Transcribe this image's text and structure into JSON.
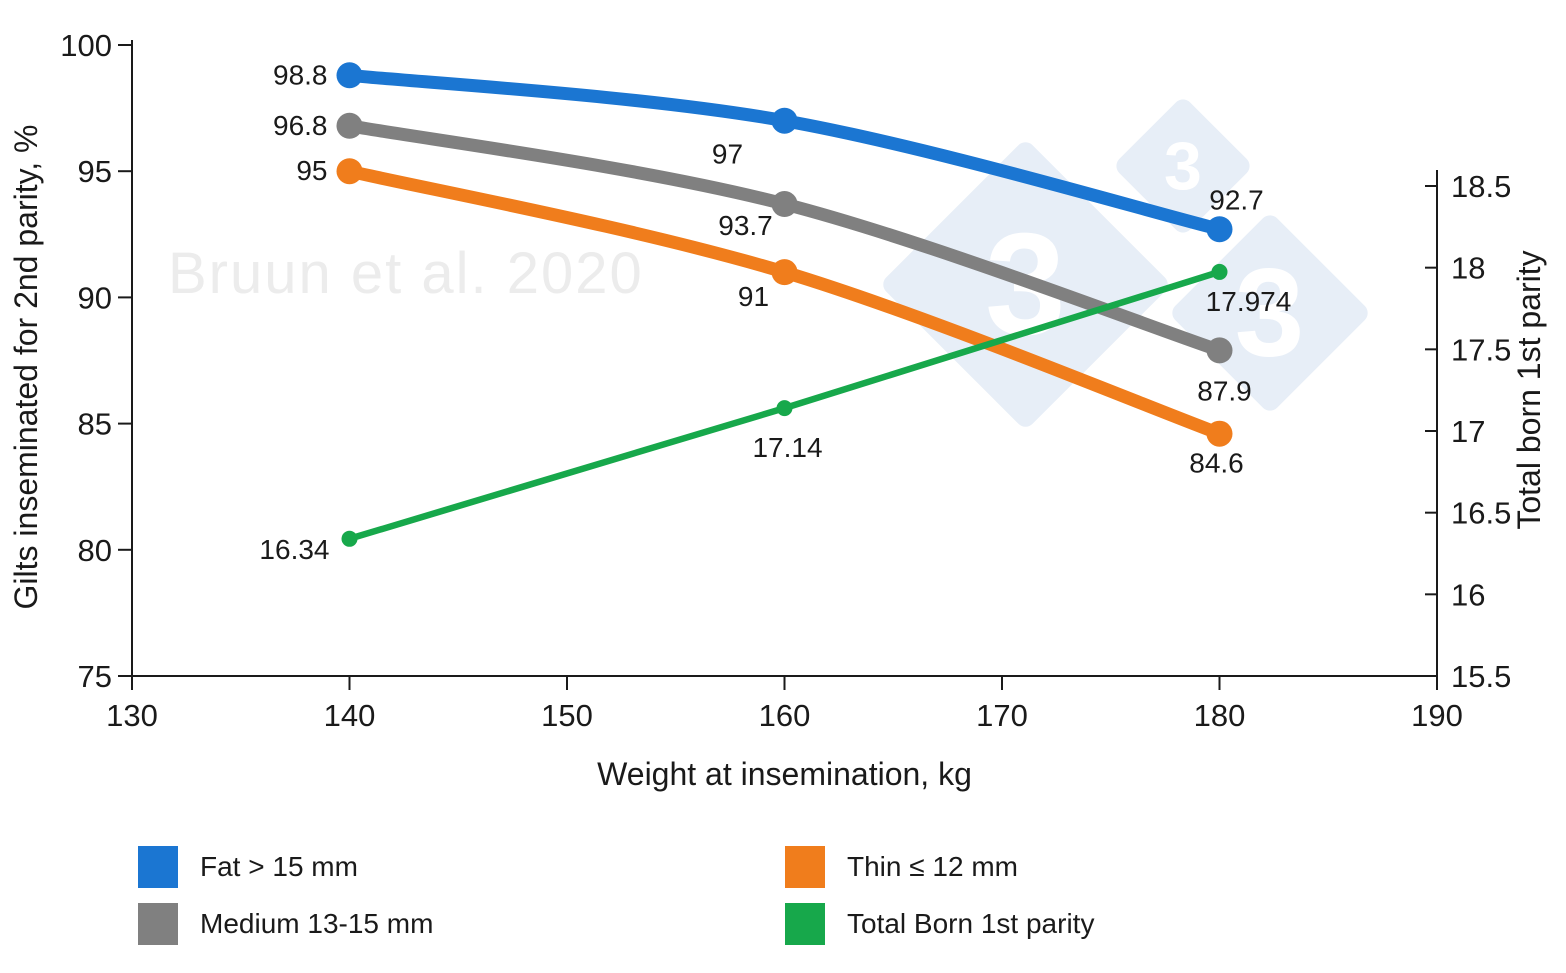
{
  "watermark": {
    "text": "Bruun et al. 2020",
    "color": "#ECECEC"
  },
  "logo": {
    "digit": "3",
    "diamond_color": "#E7EEF7"
  },
  "chart_data": {
    "type": "line",
    "x": [
      140,
      160,
      180
    ],
    "xlabel": "Weight at insemination, kg",
    "xlim": [
      130,
      190
    ],
    "x_ticks": [
      "130",
      "140",
      "150",
      "160",
      "170",
      "180",
      "190"
    ],
    "x_tick_values": [
      130,
      140,
      150,
      160,
      170,
      180,
      190
    ],
    "left_axis": {
      "label": "Gilts inseminated for 2nd parity, %",
      "lim": [
        75,
        100
      ],
      "ticks": [
        "75",
        "80",
        "85",
        "90",
        "95",
        "100"
      ],
      "tick_values": [
        75,
        80,
        85,
        90,
        95,
        100
      ]
    },
    "right_axis": {
      "label": "Total born 1st parity",
      "lim": [
        15.5,
        18.5
      ],
      "ticks": [
        "15.5",
        "16",
        "16.5",
        "17",
        "17.5",
        "18",
        "18.5"
      ],
      "tick_values": [
        15.5,
        16,
        16.5,
        17,
        17.5,
        18,
        18.5
      ]
    },
    "grid": false,
    "legend_position": "bottom-two-columns",
    "series": [
      {
        "name": "Fat > 15 mm",
        "color": "#1B76D2",
        "axis": "left",
        "values": [
          98.8,
          97,
          92.7
        ],
        "point_labels": [
          "98.8",
          "97",
          "92.7"
        ]
      },
      {
        "name": "Medium 13-15 mm",
        "color": "#808080",
        "axis": "left",
        "values": [
          96.8,
          93.7,
          87.9
        ],
        "point_labels": [
          "96.8",
          "93.7",
          "87.9"
        ]
      },
      {
        "name": "Thin ≤ 12 mm",
        "color": "#F07D1C",
        "axis": "left",
        "values": [
          95,
          91,
          84.6
        ],
        "point_labels": [
          "95",
          "91",
          "84.6"
        ]
      },
      {
        "name": "Total Born 1st parity",
        "color": "#17A84B",
        "axis": "right",
        "values": [
          16.34,
          17.14,
          17.974
        ],
        "point_labels": [
          "16.34",
          "17.14",
          "17.974"
        ]
      }
    ]
  }
}
